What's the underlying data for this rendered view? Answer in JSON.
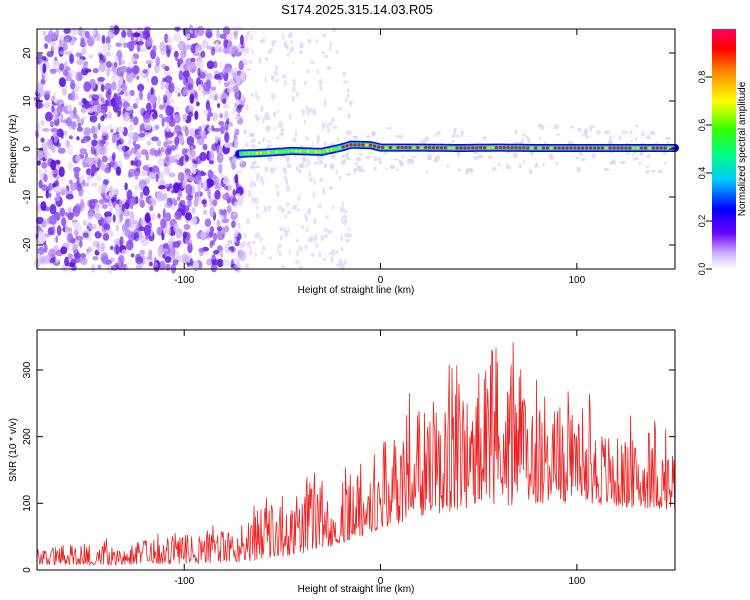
{
  "title": "S174.2025.315.14.03.R05",
  "colors": {
    "snr_line": "#ee2222",
    "ridge": "#dd1133",
    "scatter": "#7a2ff0"
  },
  "chart_data": [
    {
      "type": "heatmap",
      "title": "S174.2025.315.14.03.R05",
      "xlabel": "Height of straight line (km)",
      "ylabel": "Frequency (Hz)",
      "xlim": [
        -175,
        150
      ],
      "ylim": [
        -25,
        25
      ],
      "xticks": [
        -100,
        0,
        100
      ],
      "yticks": [
        -20,
        -10,
        0,
        10,
        20
      ],
      "colorbar": {
        "label": "Normalized spectral amplitude",
        "range": [
          0,
          1
        ],
        "ticks": [
          "0.0",
          "0.2",
          "0.4",
          "0.6",
          "0.8"
        ],
        "tick_values": [
          0.0,
          0.2,
          0.4,
          0.6,
          0.8
        ]
      },
      "noise_region_x": [
        -175,
        -70
      ],
      "ridge": {
        "x": [
          -72,
          -60,
          -45,
          -30,
          -20,
          -15,
          -5,
          0,
          20,
          40,
          60,
          80,
          100,
          120,
          150
        ],
        "freq": [
          -1.0,
          -0.8,
          -0.4,
          -0.6,
          0.3,
          0.9,
          0.8,
          0.3,
          0.3,
          0.2,
          0.3,
          0.2,
          0.2,
          0.2,
          0.2
        ]
      }
    },
    {
      "type": "line",
      "xlabel": "Height of straight line (km)",
      "ylabel": "SNR (10 * v/v)",
      "xlim": [
        -175,
        150
      ],
      "ylim": [
        0,
        360
      ],
      "xticks": [
        -100,
        0,
        100
      ],
      "yticks": [
        0,
        100,
        200,
        300
      ],
      "envelope": {
        "x": [
          -175,
          -120,
          -80,
          -60,
          -40,
          -20,
          0,
          20,
          40,
          60,
          80,
          100,
          120,
          150
        ],
        "upper": [
          35,
          45,
          60,
          95,
          120,
          150,
          190,
          240,
          290,
          320,
          290,
          240,
          200,
          185
        ],
        "lower": [
          8,
          8,
          10,
          15,
          25,
          40,
          60,
          80,
          90,
          95,
          100,
          100,
          95,
          90
        ]
      }
    }
  ]
}
